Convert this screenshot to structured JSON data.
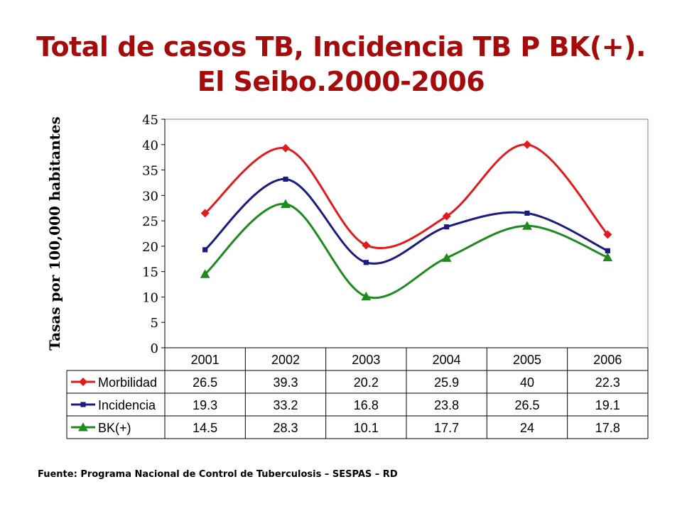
{
  "title_line1": "Total de casos TB, Incidencia TB P BK(+).",
  "title_line2": "El Seibo.2000-2006",
  "source": "Fuente: Programa Nacional de Control de Tuberculosis – SESPAS – RD",
  "chart_data": {
    "type": "line",
    "title": "Total de casos TB, Incidencia TB P BK(+). El Seibo.2000-2006",
    "ylabel": "Tasas por 100,000 habitantes",
    "xlabel": "",
    "ylim": [
      0,
      45
    ],
    "yticks": [
      0,
      5,
      10,
      15,
      20,
      25,
      30,
      35,
      40,
      45
    ],
    "categories": [
      "2001",
      "2002",
      "2003",
      "2004",
      "2005",
      "2006"
    ],
    "legend_placement": "data table below chart",
    "grid": false,
    "series": [
      {
        "name": "Morbilidad",
        "values": [
          26.5,
          39.3,
          20.2,
          25.9,
          40,
          22.3
        ],
        "color": "#e31a1c",
        "marker": "diamond"
      },
      {
        "name": "Incidencia",
        "values": [
          19.3,
          33.2,
          16.8,
          23.8,
          26.5,
          19.1
        ],
        "color": "#1a1a80",
        "marker": "square"
      },
      {
        "name": "BK(+)",
        "values": [
          14.5,
          28.3,
          10.1,
          17.7,
          24,
          17.8
        ],
        "color": "#1f8a1f",
        "marker": "triangle"
      }
    ],
    "table_labels": [
      [
        "26.5",
        "39.3",
        "20.2",
        "25.9",
        "40",
        "22.3"
      ],
      [
        "19.3",
        "33.2",
        "16.8",
        "23.8",
        "26.5",
        "19.1"
      ],
      [
        "14.5",
        "28.3",
        "10.1",
        "17.7",
        "24",
        "17.8"
      ]
    ]
  }
}
